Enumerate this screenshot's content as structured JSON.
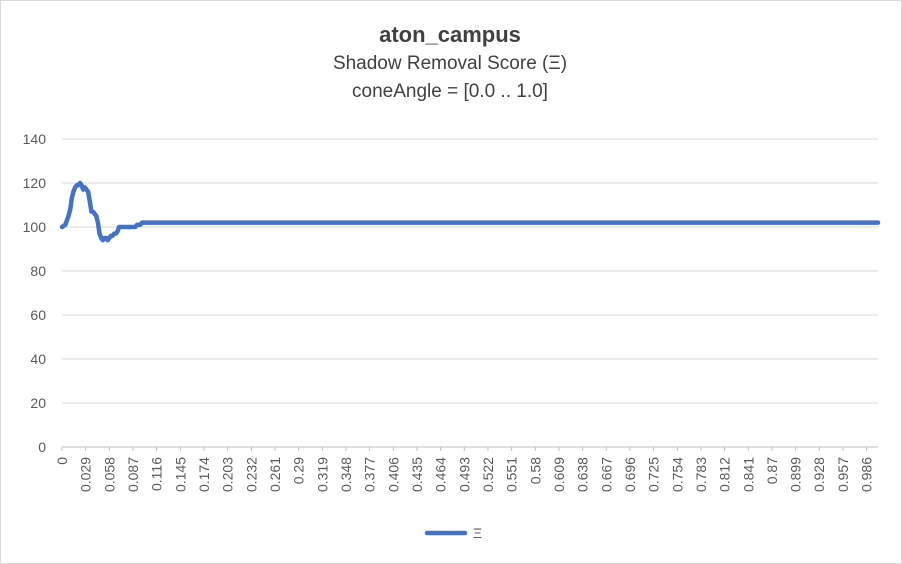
{
  "chart_data": {
    "type": "line",
    "title": "aton_campus",
    "subtitle": "Shadow Removal Score (Ξ)",
    "subtitle2": "coneAngle = [0.0 .. 1.0]",
    "xlabel": "",
    "ylabel": "",
    "ylim": [
      0,
      140
    ],
    "yticks": [
      0,
      20,
      40,
      60,
      80,
      100,
      120,
      140
    ],
    "xlim": [
      0,
      1.0
    ],
    "xticks": [
      "0",
      "0.029",
      "0.058",
      "0.087",
      "0.116",
      "0.145",
      "0.174",
      "0.203",
      "0.232",
      "0.261",
      "0.29",
      "0.319",
      "0.348",
      "0.377",
      "0.406",
      "0.435",
      "0.464",
      "0.493",
      "0.522",
      "0.551",
      "0.58",
      "0.609",
      "0.638",
      "0.667",
      "0.696",
      "0.725",
      "0.754",
      "0.783",
      "0.812",
      "0.841",
      "0.87",
      "0.899",
      "0.928",
      "0.957",
      "0.986"
    ],
    "grid": true,
    "legend_position": "bottom",
    "series": [
      {
        "name": "Ξ",
        "color": "#4472c4",
        "x": [
          0,
          0.004,
          0.008,
          0.01,
          0.012,
          0.014,
          0.016,
          0.018,
          0.02,
          0.022,
          0.024,
          0.026,
          0.028,
          0.03,
          0.032,
          0.034,
          0.036,
          0.038,
          0.04,
          0.042,
          0.044,
          0.046,
          0.048,
          0.05,
          0.052,
          0.054,
          0.056,
          0.058,
          0.06,
          0.062,
          0.064,
          0.066,
          0.068,
          0.07,
          0.072,
          0.074,
          0.076,
          0.078,
          0.08,
          0.082,
          0.084,
          0.086,
          0.088,
          0.09,
          0.092,
          0.094,
          0.096,
          0.098,
          0.1,
          0.102,
          0.104,
          0.106,
          0.108,
          0.11,
          0.112,
          0.116,
          0.13,
          0.2,
          0.4,
          0.6,
          0.8,
          1.0
        ],
        "values": [
          100,
          101,
          105,
          108,
          113,
          116,
          118,
          119,
          119,
          120,
          119,
          117,
          118,
          117,
          116,
          112,
          107,
          107,
          106,
          105,
          102,
          97,
          95,
          94,
          95,
          95,
          94,
          95,
          96,
          96,
          97,
          97,
          98,
          100,
          100,
          100,
          100,
          100,
          100,
          100,
          100,
          100,
          100,
          100,
          101,
          101,
          101,
          102,
          102,
          102,
          102,
          102,
          102,
          102,
          102,
          102,
          102,
          102,
          102,
          102,
          102,
          102
        ]
      }
    ]
  }
}
